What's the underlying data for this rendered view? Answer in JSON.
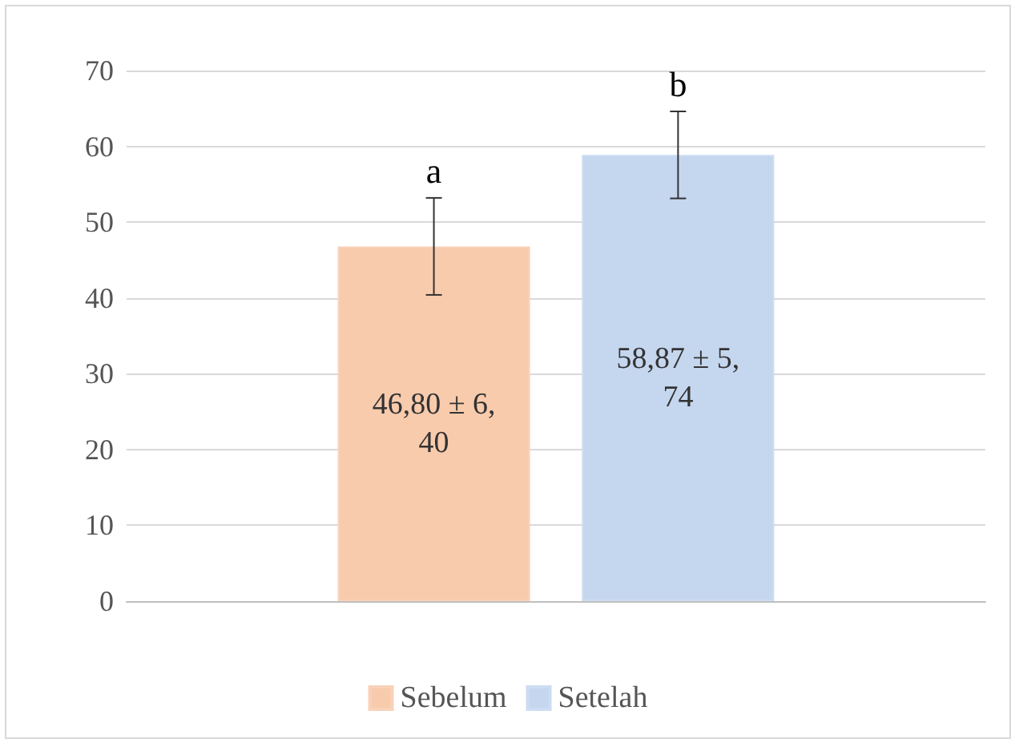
{
  "chart_data": {
    "type": "bar",
    "categories": [
      null
    ],
    "series": [
      {
        "name": "Sebelum",
        "color": "#f8cbad",
        "values": [
          46.8
        ],
        "errors": [
          6.4
        ],
        "value_labels": [
          "46,80 ± 6,40"
        ]
      },
      {
        "name": "Setelah",
        "color": "#c5d6ef",
        "values": [
          58.87
        ],
        "errors": [
          5.74
        ],
        "value_labels": [
          "58,87 ± 5,74"
        ]
      }
    ],
    "annotations": [
      "a",
      "b"
    ],
    "ylim": [
      0,
      70
    ],
    "yticks": [
      0,
      10,
      20,
      30,
      40,
      50,
      60,
      70
    ],
    "grid": "y",
    "legend": "bottom"
  }
}
